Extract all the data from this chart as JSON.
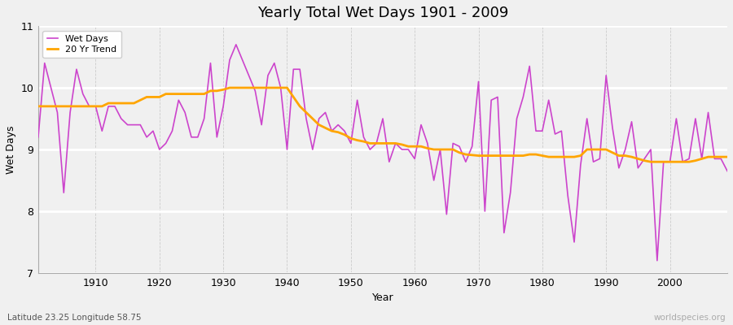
{
  "title": "Yearly Total Wet Days 1901 - 2009",
  "xlabel": "Year",
  "ylabel": "Wet Days",
  "lat_lon_label": "Latitude 23.25 Longitude 58.75",
  "watermark": "worldspecies.org",
  "ylim": [
    7,
    11
  ],
  "xlim": [
    1901,
    2009
  ],
  "yticks": [
    7,
    8,
    9,
    10,
    11
  ],
  "xticks": [
    1910,
    1920,
    1930,
    1940,
    1950,
    1960,
    1970,
    1980,
    1990,
    2000
  ],
  "wet_days_color": "#cc44cc",
  "trend_color": "#ffa500",
  "bg_color": "#f0f0f0",
  "years": [
    1901,
    1902,
    1903,
    1904,
    1905,
    1906,
    1907,
    1908,
    1909,
    1910,
    1911,
    1912,
    1913,
    1914,
    1915,
    1916,
    1917,
    1918,
    1919,
    1920,
    1921,
    1922,
    1923,
    1924,
    1925,
    1926,
    1927,
    1928,
    1929,
    1930,
    1931,
    1932,
    1933,
    1934,
    1935,
    1936,
    1937,
    1938,
    1939,
    1940,
    1941,
    1942,
    1943,
    1944,
    1945,
    1946,
    1947,
    1948,
    1949,
    1950,
    1951,
    1952,
    1953,
    1954,
    1955,
    1956,
    1957,
    1958,
    1959,
    1960,
    1961,
    1962,
    1963,
    1964,
    1965,
    1966,
    1967,
    1968,
    1969,
    1970,
    1971,
    1972,
    1973,
    1974,
    1975,
    1976,
    1977,
    1978,
    1979,
    1980,
    1981,
    1982,
    1983,
    1984,
    1985,
    1986,
    1987,
    1988,
    1989,
    1990,
    1991,
    1992,
    1993,
    1994,
    1995,
    1996,
    1997,
    1998,
    1999,
    2000,
    2001,
    2002,
    2003,
    2004,
    2005,
    2006,
    2007,
    2008,
    2009
  ],
  "wet_days": [
    9.2,
    10.4,
    10.0,
    9.6,
    8.3,
    9.6,
    10.3,
    9.9,
    9.7,
    9.7,
    9.3,
    9.7,
    9.7,
    9.5,
    9.4,
    9.4,
    9.4,
    9.2,
    9.3,
    9.0,
    9.1,
    9.3,
    9.8,
    9.6,
    9.2,
    9.2,
    9.5,
    10.4,
    9.2,
    9.7,
    10.45,
    10.7,
    10.45,
    10.2,
    9.95,
    9.4,
    10.2,
    10.4,
    10.0,
    9.0,
    10.3,
    10.3,
    9.5,
    9.0,
    9.5,
    9.6,
    9.3,
    9.4,
    9.3,
    9.1,
    9.8,
    9.2,
    9.0,
    9.1,
    9.5,
    8.8,
    9.1,
    9.0,
    9.0,
    8.85,
    9.4,
    9.1,
    8.5,
    9.0,
    7.95,
    9.1,
    9.05,
    8.8,
    9.05,
    10.1,
    8.0,
    9.8,
    9.85,
    7.65,
    8.3,
    9.5,
    9.85,
    10.35,
    9.3,
    9.3,
    9.8,
    9.25,
    9.3,
    8.25,
    7.5,
    8.75,
    9.5,
    8.8,
    8.85,
    10.2,
    9.35,
    8.7,
    9.0,
    9.45,
    8.7,
    8.85,
    9.0,
    7.2,
    8.8,
    8.8,
    9.5,
    8.8,
    8.85,
    9.5,
    8.85,
    9.6,
    8.85,
    8.85,
    8.65
  ],
  "trend_years": [
    1901,
    1902,
    1903,
    1904,
    1905,
    1906,
    1907,
    1908,
    1909,
    1910,
    1911,
    1912,
    1913,
    1914,
    1915,
    1916,
    1917,
    1918,
    1919,
    1920,
    1921,
    1922,
    1923,
    1924,
    1925,
    1926,
    1927,
    1928,
    1929,
    1930,
    1931,
    1932,
    1933,
    1934,
    1935,
    1936,
    1937,
    1938,
    1939,
    1940,
    1941,
    1942,
    1943,
    1944,
    1945,
    1946,
    1947,
    1948,
    1949,
    1950,
    1951,
    1952,
    1953,
    1954,
    1955,
    1956,
    1957,
    1958,
    1959,
    1960,
    1961,
    1962,
    1963,
    1964,
    1965,
    1966,
    1967,
    1968,
    1969,
    1970,
    1971,
    1972,
    1973,
    1974,
    1975,
    1976,
    1977,
    1978,
    1979,
    1980,
    1981,
    1982,
    1983,
    1984,
    1985,
    1986,
    1987,
    1988,
    1989,
    1990,
    1991,
    1992,
    1993,
    1994,
    1995,
    1996,
    1997,
    1998,
    1999,
    2000,
    2001,
    2002,
    2003,
    2004,
    2005,
    2006,
    2007,
    2008,
    2009
  ],
  "trend_vals": [
    9.7,
    9.7,
    9.7,
    9.7,
    9.7,
    9.7,
    9.7,
    9.7,
    9.7,
    9.7,
    9.7,
    9.75,
    9.75,
    9.75,
    9.75,
    9.75,
    9.8,
    9.85,
    9.85,
    9.85,
    9.9,
    9.9,
    9.9,
    9.9,
    9.9,
    9.9,
    9.9,
    9.95,
    9.95,
    9.97,
    10.0,
    10.0,
    10.0,
    10.0,
    10.0,
    10.0,
    10.0,
    10.0,
    10.0,
    10.0,
    9.85,
    9.7,
    9.6,
    9.5,
    9.4,
    9.35,
    9.3,
    9.28,
    9.24,
    9.18,
    9.15,
    9.13,
    9.1,
    9.1,
    9.1,
    9.1,
    9.1,
    9.08,
    9.05,
    9.05,
    9.05,
    9.02,
    9.0,
    9.0,
    9.0,
    9.0,
    8.95,
    8.92,
    8.91,
    8.9,
    8.9,
    8.9,
    8.9,
    8.9,
    8.9,
    8.9,
    8.9,
    8.92,
    8.92,
    8.9,
    8.88,
    8.88,
    8.88,
    8.88,
    8.88,
    8.9,
    9.0,
    9.0,
    9.0,
    9.0,
    8.95,
    8.9,
    8.9,
    8.88,
    8.85,
    8.82,
    8.8,
    8.8,
    8.8,
    8.8,
    8.8,
    8.8,
    8.8,
    8.82,
    8.85,
    8.88,
    8.88,
    8.88,
    8.88
  ]
}
